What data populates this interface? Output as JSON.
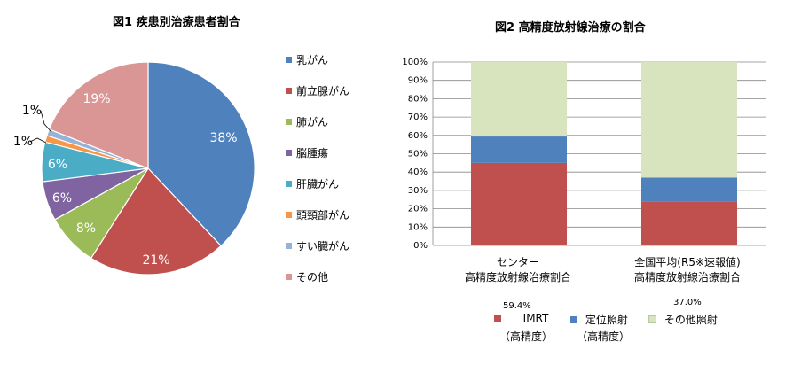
{
  "chart_data": [
    {
      "type": "pie",
      "title": "図1 疾患別治療患者割合",
      "slices": [
        {
          "name": "乳がん",
          "value": 38,
          "label": "38%",
          "color": "#4f81bd"
        },
        {
          "name": "前立腺がん",
          "value": 21,
          "label": "21%",
          "color": "#c0504d"
        },
        {
          "name": "肺がん",
          "value": 8,
          "label": "8%",
          "color": "#9bbb59"
        },
        {
          "name": "脳腫瘍",
          "value": 6,
          "label": "6%",
          "color": "#8064a2"
        },
        {
          "name": "肝臓がん",
          "value": 6,
          "label": "6%",
          "color": "#4bacc6"
        },
        {
          "name": "頭頸部がん",
          "value": 1,
          "label": "1%",
          "color": "#f79646"
        },
        {
          "name": "すい臓がん",
          "value": 1,
          "label": "1%",
          "color": "#95b3d7"
        },
        {
          "name": "その他",
          "value": 19,
          "label": "19%",
          "color": "#da9694"
        }
      ],
      "legend": "right"
    },
    {
      "type": "bar",
      "stacked": true,
      "title": "図2 高精度放射線治療の割合",
      "categories": [
        [
          "センター",
          "高精度放射線治療割合"
        ],
        [
          "全国平均(R5※速報値)",
          "高精度放射線治療割合"
        ]
      ],
      "series": [
        {
          "name": "IMRT",
          "name_sub": "（高精度）",
          "values": [
            45,
            24
          ],
          "color": "#c0504d"
        },
        {
          "name": "定位照射",
          "name_sub": "（高精度）",
          "values": [
            14.4,
            13
          ],
          "color": "#4f81bd"
        },
        {
          "name": "その他照射",
          "values": [
            40.6,
            63
          ],
          "color": "#d7e4bd"
        }
      ],
      "annotations": [
        "59.4%",
        "37.0%"
      ],
      "yticks": [
        "0%",
        "10%",
        "20%",
        "30%",
        "40%",
        "50%",
        "60%",
        "70%",
        "80%",
        "90%",
        "100%"
      ],
      "ylim": [
        0,
        100
      ],
      "grid": true,
      "legend": "bottom"
    }
  ]
}
